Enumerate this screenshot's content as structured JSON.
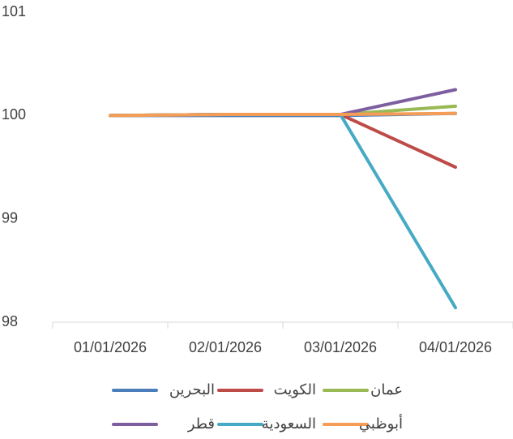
{
  "chart_data": {
    "type": "line",
    "categories": [
      "01/01/2026",
      "02/01/2026",
      "03/01/2026",
      "04/01/2026"
    ],
    "series": [
      {
        "name": "البحرين",
        "color": "#4a7ebb",
        "values": [
          100,
          100,
          100,
          100.02
        ]
      },
      {
        "name": "الكويت",
        "color": "#be4b48",
        "values": [
          100,
          100.01,
          100.01,
          99.5
        ]
      },
      {
        "name": "عمان",
        "color": "#98b954",
        "values": [
          100,
          100.01,
          100.01,
          100.09
        ]
      },
      {
        "name": "قطر",
        "color": "#7d5fa0",
        "values": [
          100,
          100.01,
          100.01,
          100.25
        ]
      },
      {
        "name": "السعودية",
        "color": "#46aac5",
        "values": [
          100,
          100.01,
          100.01,
          98.14
        ]
      },
      {
        "name": "أبوظبي",
        "color": "#f59d56",
        "values": [
          100,
          100.01,
          100.01,
          100.02
        ]
      }
    ],
    "ylim": [
      98,
      101
    ],
    "yticks": [
      98,
      99,
      100,
      101
    ],
    "grid": false,
    "legend": "bottom"
  }
}
